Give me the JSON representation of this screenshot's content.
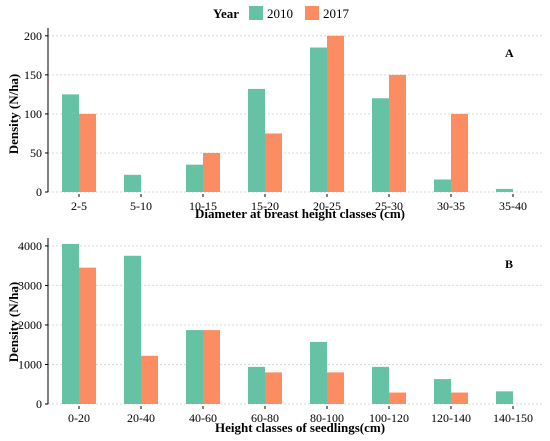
{
  "legend": {
    "title": "Year",
    "items": [
      {
        "label": "2010",
        "color": "#66C2A5"
      },
      {
        "label": "2017",
        "color": "#FC8D62"
      }
    ]
  },
  "chart_data": [
    {
      "type": "bar",
      "panel_label": "A",
      "xlabel": "Diameter at breast height classes (cm)",
      "ylabel": "Density (N/ha)",
      "categories": [
        "2-5",
        "5-10",
        "10-15",
        "15-20",
        "20-25",
        "25-30",
        "30-35",
        "35-40"
      ],
      "series": [
        {
          "name": "2010",
          "color": "#66C2A5",
          "values": [
            125,
            22,
            35,
            132,
            185,
            120,
            16,
            4
          ]
        },
        {
          "name": "2017",
          "color": "#FC8D62",
          "values": [
            100,
            0,
            50,
            75,
            200,
            150,
            100,
            0
          ]
        }
      ],
      "ylim": [
        0,
        210
      ],
      "yticks": [
        0,
        50,
        100,
        150,
        200
      ],
      "grid": true
    },
    {
      "type": "bar",
      "panel_label": "B",
      "xlabel": "Height classes of seedlings(cm)",
      "ylabel": "Density (N/ha)",
      "categories": [
        "0-20",
        "20-40",
        "40-60",
        "60-80",
        "80-100",
        "100-120",
        "120-140",
        "140-150"
      ],
      "series": [
        {
          "name": "2010",
          "color": "#66C2A5",
          "values": [
            4050,
            3750,
            1870,
            940,
            1570,
            940,
            630,
            320
          ]
        },
        {
          "name": "2017",
          "color": "#FC8D62",
          "values": [
            3450,
            1220,
            1870,
            800,
            800,
            290,
            290,
            0
          ]
        }
      ],
      "ylim": [
        0,
        4200
      ],
      "yticks": [
        0,
        1000,
        2000,
        3000,
        4000
      ],
      "grid": true
    }
  ]
}
